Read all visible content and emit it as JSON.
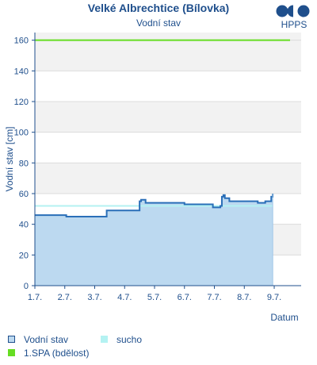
{
  "header": {
    "title": "Velké Albrechtice (Bílovka)",
    "subtitle": "Vodní stav",
    "logo_text": "HPPS"
  },
  "chart_data": {
    "type": "area",
    "xlabel": "Datum",
    "ylabel": "Vodní stav [cm]",
    "ylim": [
      0,
      165
    ],
    "xlim": [
      1,
      9.9
    ],
    "y_ticks": [
      0,
      20,
      40,
      60,
      80,
      100,
      120,
      140,
      160
    ],
    "x_ticks": [
      {
        "value": 1,
        "label": "1.7."
      },
      {
        "value": 2,
        "label": "2.7."
      },
      {
        "value": 3,
        "label": "3.7."
      },
      {
        "value": 4,
        "label": "4.7."
      },
      {
        "value": 5,
        "label": "5.7."
      },
      {
        "value": 6,
        "label": "6.7."
      },
      {
        "value": 7,
        "label": "7.7."
      },
      {
        "value": 8,
        "label": "8.7."
      },
      {
        "value": 9,
        "label": "9.7."
      }
    ],
    "grid": "horizontal bands",
    "series": [
      {
        "name": "Vodní stav",
        "color": "#2a6fb8",
        "fill": "#bcd9f0",
        "x": [
          1.0,
          1.95,
          2.05,
          3.35,
          3.4,
          4.45,
          4.5,
          4.55,
          4.7,
          5.25,
          5.3,
          6.0,
          6.05,
          6.95,
          7.0,
          7.2,
          7.25,
          7.3,
          7.35,
          7.5,
          7.7,
          8.0,
          8.45,
          8.5,
          8.7,
          8.9,
          8.95
        ],
        "y": [
          46,
          46,
          45,
          45,
          49,
          49,
          55,
          56,
          54,
          54,
          54,
          53,
          53,
          51,
          51,
          52,
          58,
          59,
          57,
          55,
          55,
          55,
          54,
          54,
          55,
          58,
          60
        ]
      },
      {
        "name": "sucho",
        "color": "#b4f2f2",
        "y": 52
      },
      {
        "name": "1.SPA (bdělost)",
        "color": "#66dd22",
        "y": 160
      }
    ],
    "legend": "bottom-left",
    "legend_items": [
      {
        "label": "Vodní stav",
        "type": "area",
        "color": "#bcd9f0",
        "edge": "#1f4f8c"
      },
      {
        "label": "sucho",
        "type": "band",
        "color": "#b4f2f2"
      },
      {
        "label": "1.SPA (bdělost)",
        "type": "line",
        "color": "#66dd22"
      }
    ],
    "colors": {
      "text": "#1f4f8c",
      "axis": "#1f4f8c",
      "band_alt": "#f2f2f2",
      "grid": "#dcdcdc"
    }
  }
}
